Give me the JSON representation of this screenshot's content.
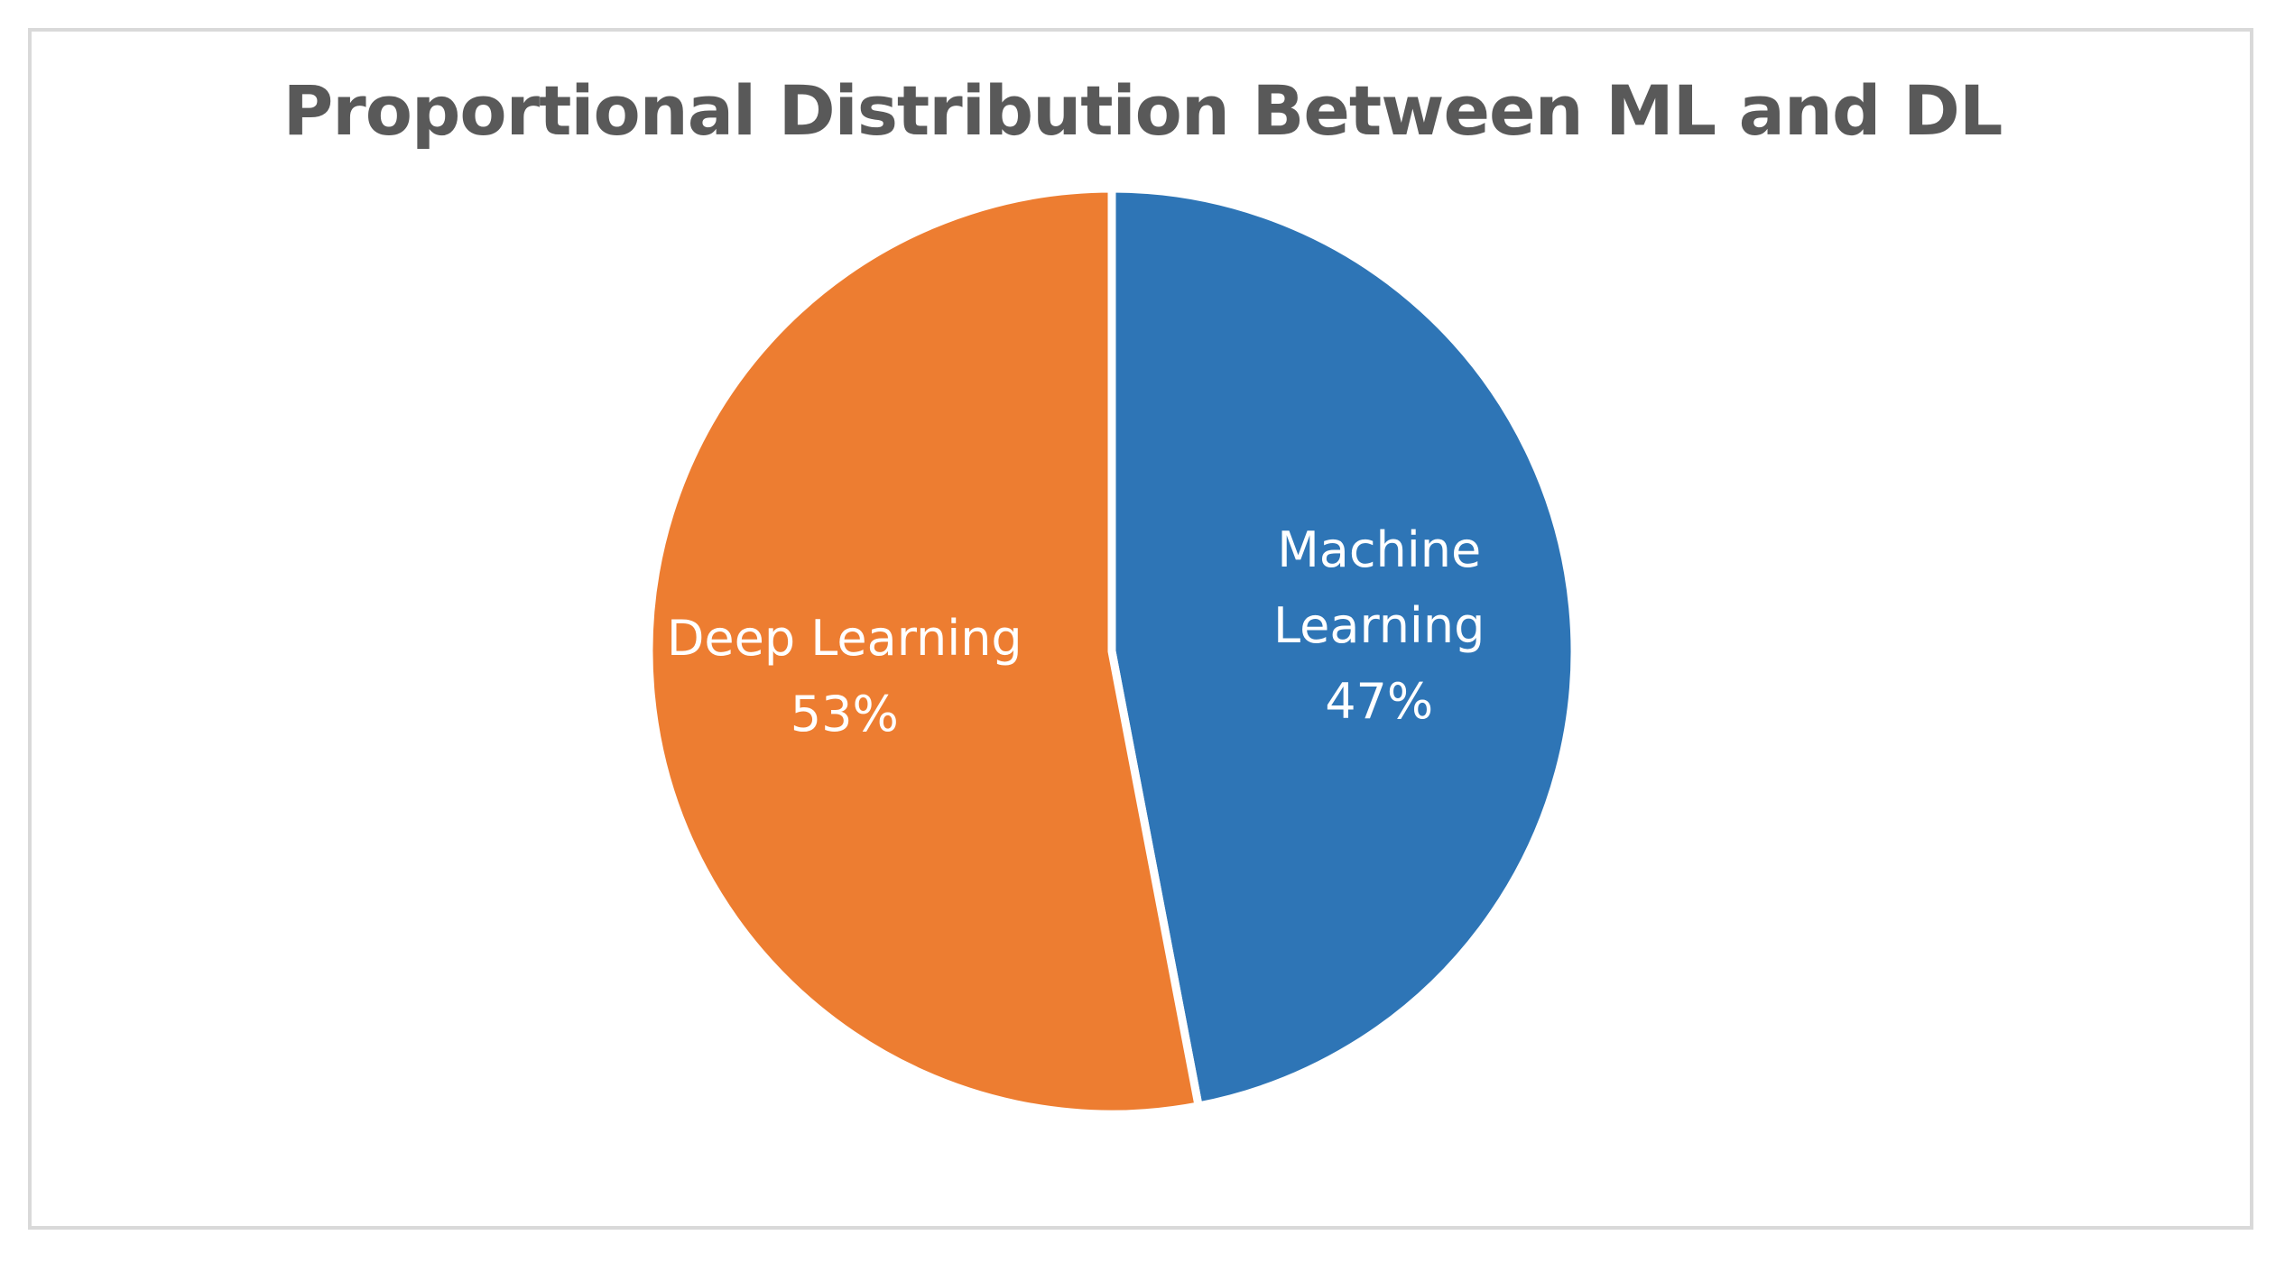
{
  "chart_data": {
    "type": "pie",
    "title": "Proportional Distribution Between ML and DL",
    "start_angle_deg": 0,
    "direction": "clockwise",
    "slices": [
      {
        "name": "Machine Learning",
        "label_lines": [
          "Machine",
          "Learning"
        ],
        "value": 47,
        "value_label": "47%",
        "color": "#2e75b6"
      },
      {
        "name": "Deep Learning",
        "label_lines": [
          "Deep Learning"
        ],
        "value": 53,
        "value_label": "53%",
        "color": "#ed7d31"
      }
    ],
    "legend": "none",
    "data_labels": "inside"
  }
}
